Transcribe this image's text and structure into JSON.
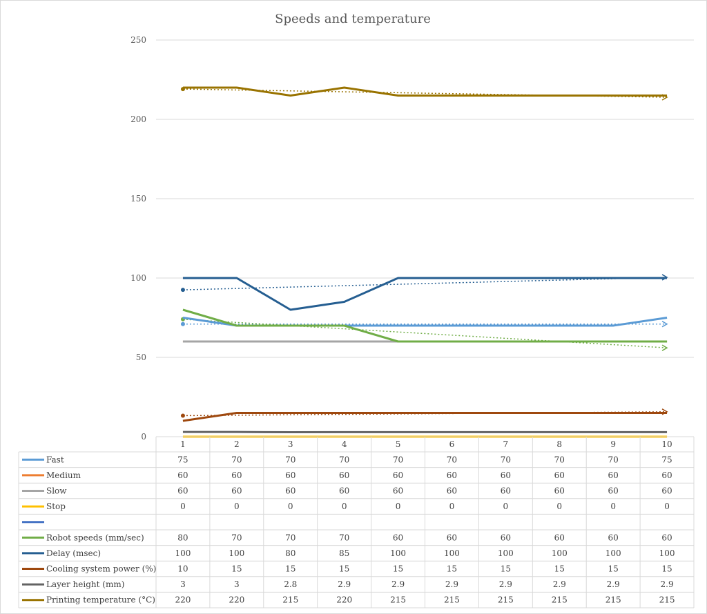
{
  "chart_data": {
    "type": "line",
    "title": "Speeds and temperature",
    "xlabel": "",
    "ylabel": "",
    "ylim": [
      0,
      250
    ],
    "yticks": [
      0,
      50,
      100,
      150,
      200,
      250
    ],
    "categories": [
      "1",
      "2",
      "3",
      "4",
      "5",
      "6",
      "7",
      "8",
      "9",
      "10"
    ],
    "grid": true,
    "legend": "data-table",
    "series": [
      {
        "name": "Fast",
        "color": "#5b9bd5",
        "values": [
          75,
          70,
          70,
          70,
          70,
          70,
          70,
          70,
          70,
          75
        ],
        "line": true,
        "trendline": true
      },
      {
        "name": "Medium",
        "color": "#ed7d31",
        "values": [
          60,
          60,
          60,
          60,
          60,
          60,
          60,
          60,
          60,
          60
        ],
        "line": true,
        "trendline": false
      },
      {
        "name": "Slow",
        "color": "#a5a5a5",
        "values": [
          60,
          60,
          60,
          60,
          60,
          60,
          60,
          60,
          60,
          60
        ],
        "line": true,
        "trendline": false
      },
      {
        "name": "Stop",
        "color": "#ffc000",
        "values": [
          0,
          0,
          0,
          0,
          0,
          0,
          0,
          0,
          0,
          0
        ],
        "line": true,
        "trendline": false
      },
      {
        "name": "",
        "color": "#4472c4",
        "values": [
          null,
          null,
          null,
          null,
          null,
          null,
          null,
          null,
          null,
          null
        ],
        "line": false,
        "trendline": false
      },
      {
        "name": "Robot speeds  (mm/sec)",
        "color": "#70ad47",
        "values": [
          80,
          70,
          70,
          70,
          60,
          60,
          60,
          60,
          60,
          60
        ],
        "line": true,
        "trendline": true
      },
      {
        "name": "Delay (msec)",
        "color": "#255e91",
        "values": [
          100,
          100,
          80,
          85,
          100,
          100,
          100,
          100,
          100,
          100
        ],
        "line": true,
        "trendline": true
      },
      {
        "name": "Cooling system power (%)",
        "color": "#9e480e",
        "values": [
          10,
          15,
          15,
          15,
          15,
          15,
          15,
          15,
          15,
          15
        ],
        "line": true,
        "trendline": true
      },
      {
        "name": "Layer height (mm)",
        "color": "#636363",
        "values": [
          3,
          3,
          2.8,
          2.9,
          2.9,
          2.9,
          2.9,
          2.9,
          2.9,
          2.9
        ],
        "line": true,
        "trendline": false
      },
      {
        "name": "Printing temperature (°C)",
        "color": "#997300",
        "values": [
          220,
          220,
          215,
          220,
          215,
          215,
          215,
          215,
          215,
          215
        ],
        "line": true,
        "trendline": true
      }
    ]
  }
}
